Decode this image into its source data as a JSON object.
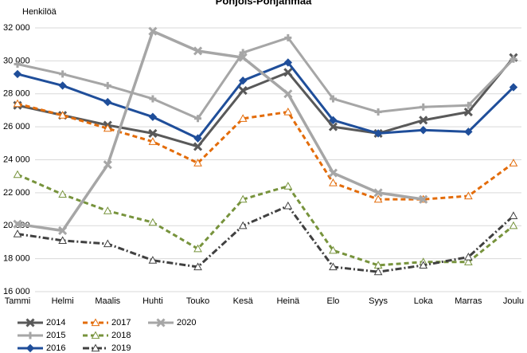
{
  "chart_data": {
    "type": "line",
    "title": "Pohjois-Pohjanmaa",
    "y_label": "Henkilöä",
    "categories": [
      "Tammi",
      "Helmi",
      "Maalis",
      "Huhti",
      "Touko",
      "Kesä",
      "Heinä",
      "Elo",
      "Syys",
      "Loka",
      "Marras",
      "Joulu"
    ],
    "ylim": [
      16000,
      32000
    ],
    "yticks": [
      {
        "value": 16000,
        "label": "16 000"
      },
      {
        "value": 18000,
        "label": "18 000"
      },
      {
        "value": 20000,
        "label": "20 000"
      },
      {
        "value": 22000,
        "label": "22 000"
      },
      {
        "value": 24000,
        "label": "24 000"
      },
      {
        "value": 26000,
        "label": "26 000"
      },
      {
        "value": 28000,
        "label": "28 000"
      },
      {
        "value": 30000,
        "label": "30 000"
      },
      {
        "value": 32000,
        "label": "32 000"
      }
    ],
    "grid": true,
    "legend": "bottom",
    "series": [
      {
        "name": "2014",
        "color": "#595959",
        "dash": "solid",
        "marker": "x",
        "values": [
          27300,
          26700,
          26100,
          25600,
          24800,
          28200,
          29300,
          26000,
          25600,
          26400,
          26900,
          30200
        ]
      },
      {
        "name": "2015",
        "color": "#a6a6a6",
        "dash": "solid",
        "marker": "plus",
        "values": [
          29800,
          29200,
          28500,
          27700,
          26500,
          30500,
          31400,
          27700,
          26900,
          27200,
          27300,
          30100
        ]
      },
      {
        "name": "2016",
        "color": "#1f4e9a",
        "dash": "solid",
        "marker": "diamond",
        "values": [
          29200,
          28500,
          27500,
          26600,
          25300,
          28800,
          29900,
          26400,
          25600,
          25800,
          25700,
          28400
        ]
      },
      {
        "name": "2017",
        "color": "#e36c0a",
        "dash": "dashed",
        "marker": "triangle",
        "values": [
          27400,
          26700,
          25900,
          25100,
          23800,
          26500,
          26900,
          22600,
          21600,
          21600,
          21800,
          23800
        ]
      },
      {
        "name": "2018",
        "color": "#77933c",
        "dash": "dashed",
        "marker": "triangle",
        "values": [
          23100,
          21900,
          20900,
          20200,
          18600,
          21600,
          22400,
          18500,
          17600,
          17800,
          17800,
          20000
        ]
      },
      {
        "name": "2019",
        "color": "#404040",
        "dash": "dashdot",
        "marker": "triangle",
        "values": [
          19500,
          19100,
          18900,
          17900,
          17500,
          20000,
          21200,
          17500,
          17200,
          17600,
          18100,
          20600
        ]
      },
      {
        "name": "2020",
        "color": "#a6a6a6",
        "dash": "solid",
        "marker": "x",
        "values": [
          20100,
          19700,
          23700,
          31800,
          30600,
          30200,
          28000,
          23200,
          22000,
          21600,
          null,
          null
        ]
      }
    ]
  }
}
